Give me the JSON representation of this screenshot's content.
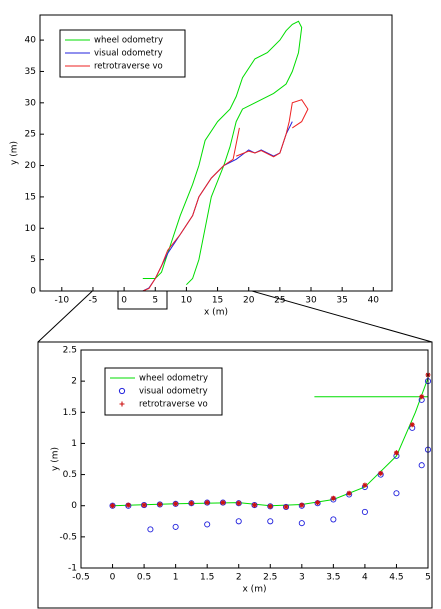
{
  "chart_data": [
    {
      "type": "line",
      "xlabel": "x (m)",
      "ylabel": "y (m)",
      "xlim": [
        -13.5,
        43
      ],
      "ylim": [
        0,
        44
      ],
      "xticks": [
        -10,
        -5,
        0,
        5,
        10,
        15,
        20,
        25,
        30,
        35,
        40
      ],
      "yticks": [
        0,
        5,
        10,
        15,
        20,
        25,
        30,
        35,
        40
      ],
      "legend": "upper left",
      "series": [
        {
          "name": "wheel odometry",
          "color": "#00dd00",
          "x": [
            3,
            5,
            6,
            7,
            9,
            11,
            12,
            13,
            15,
            17,
            18,
            19,
            21,
            23,
            25,
            26,
            27,
            28,
            28.5,
            28,
            27,
            26,
            24,
            22,
            19,
            18,
            17,
            16,
            14,
            13,
            12,
            11,
            10
          ],
          "values": [
            2,
            2,
            3,
            6,
            12,
            17,
            20,
            24,
            27,
            29,
            31,
            34,
            37,
            38,
            40,
            41.5,
            42.5,
            43,
            42,
            38,
            35,
            33,
            31.5,
            30.5,
            29,
            27,
            23,
            20,
            15,
            10,
            5,
            2,
            1
          ]
        },
        {
          "name": "visual odometry",
          "color": "#2222dd",
          "x": [
            0,
            3,
            4,
            5,
            6,
            7,
            9,
            11,
            12,
            14,
            16,
            18,
            20,
            21,
            22,
            24,
            25,
            26,
            27
          ],
          "values": [
            0,
            0,
            0.5,
            2,
            4,
            6,
            9,
            12,
            15,
            18,
            20,
            21,
            22.5,
            22,
            22.5,
            21.5,
            22,
            25,
            27
          ]
        },
        {
          "name": "retrotraverse vo",
          "color": "#ee2222",
          "x": [
            0,
            3,
            4,
            5,
            6,
            7,
            9,
            11,
            12,
            14,
            16,
            17.5,
            18.5,
            null,
            18,
            20,
            21,
            22,
            24,
            25,
            26,
            26.5,
            27,
            28.5,
            29.5,
            28.5,
            27
          ],
          "values": [
            0,
            0,
            0.4,
            2,
            4,
            6.5,
            9,
            12,
            15,
            18,
            20,
            21,
            26,
            null,
            21.5,
            22.3,
            22,
            22.4,
            21.4,
            22,
            25,
            27,
            30,
            30.5,
            29,
            27,
            26
          ]
        }
      ]
    },
    {
      "type": "line",
      "xlabel": "x (m)",
      "ylabel": "y (m)",
      "xlim": [
        -0.5,
        5
      ],
      "ylim": [
        -1,
        2.5
      ],
      "xticks": [
        -0.5,
        0,
        0.5,
        1,
        1.5,
        2,
        2.5,
        3,
        3.5,
        4,
        4.5,
        5
      ],
      "yticks": [
        -1,
        -0.5,
        0,
        0.5,
        1,
        1.5,
        2,
        2.5
      ],
      "legend": "upper left",
      "series": [
        {
          "name": "wheel odometry",
          "color": "#00dd00",
          "x": [
            0,
            1,
            2,
            2.5,
            3,
            3.5,
            4,
            4.5,
            4.8,
            5,
            null,
            3.2,
            5
          ],
          "values": [
            0,
            0.03,
            0.05,
            0,
            0.02,
            0.1,
            0.3,
            0.8,
            1.5,
            2.05,
            null,
            1.75,
            1.75
          ]
        },
        {
          "name": "visual odometry",
          "color": "#2222dd",
          "marker": "o",
          "x": [
            0,
            0.25,
            0.5,
            0.75,
            1,
            1.25,
            1.5,
            1.75,
            2,
            2.25,
            2.5,
            2.75,
            3,
            3.25,
            3.5,
            3.75,
            4,
            4.25,
            4.5,
            4.75,
            4.9,
            5,
            0.6,
            1,
            1.5,
            2,
            2.5,
            3,
            3.5,
            4,
            4.5,
            4.9,
            5
          ],
          "values": [
            0,
            0,
            0.01,
            0.02,
            0.03,
            0.04,
            0.05,
            0.05,
            0.04,
            0.01,
            -0.01,
            -0.02,
            0,
            0.04,
            0.1,
            0.18,
            0.3,
            0.5,
            0.8,
            1.25,
            1.7,
            2.0,
            -0.38,
            -0.34,
            -0.3,
            -0.25,
            -0.25,
            -0.28,
            -0.22,
            -0.1,
            0.2,
            0.65,
            0.9
          ]
        },
        {
          "name": "retrotraverse vo",
          "color": "#cc1111",
          "marker": "*",
          "x": [
            0,
            0.25,
            0.5,
            0.75,
            1,
            1.25,
            1.5,
            1.75,
            2,
            2.25,
            2.5,
            2.75,
            3,
            3.25,
            3.5,
            3.75,
            4,
            4.25,
            4.5,
            4.75,
            4.9,
            5
          ],
          "values": [
            0,
            0.01,
            0.01,
            0.02,
            0.03,
            0.04,
            0.05,
            0.05,
            0.04,
            0.01,
            -0.01,
            -0.02,
            0.01,
            0.05,
            0.12,
            0.2,
            0.33,
            0.52,
            0.85,
            1.3,
            1.75,
            2.1
          ]
        }
      ]
    }
  ]
}
